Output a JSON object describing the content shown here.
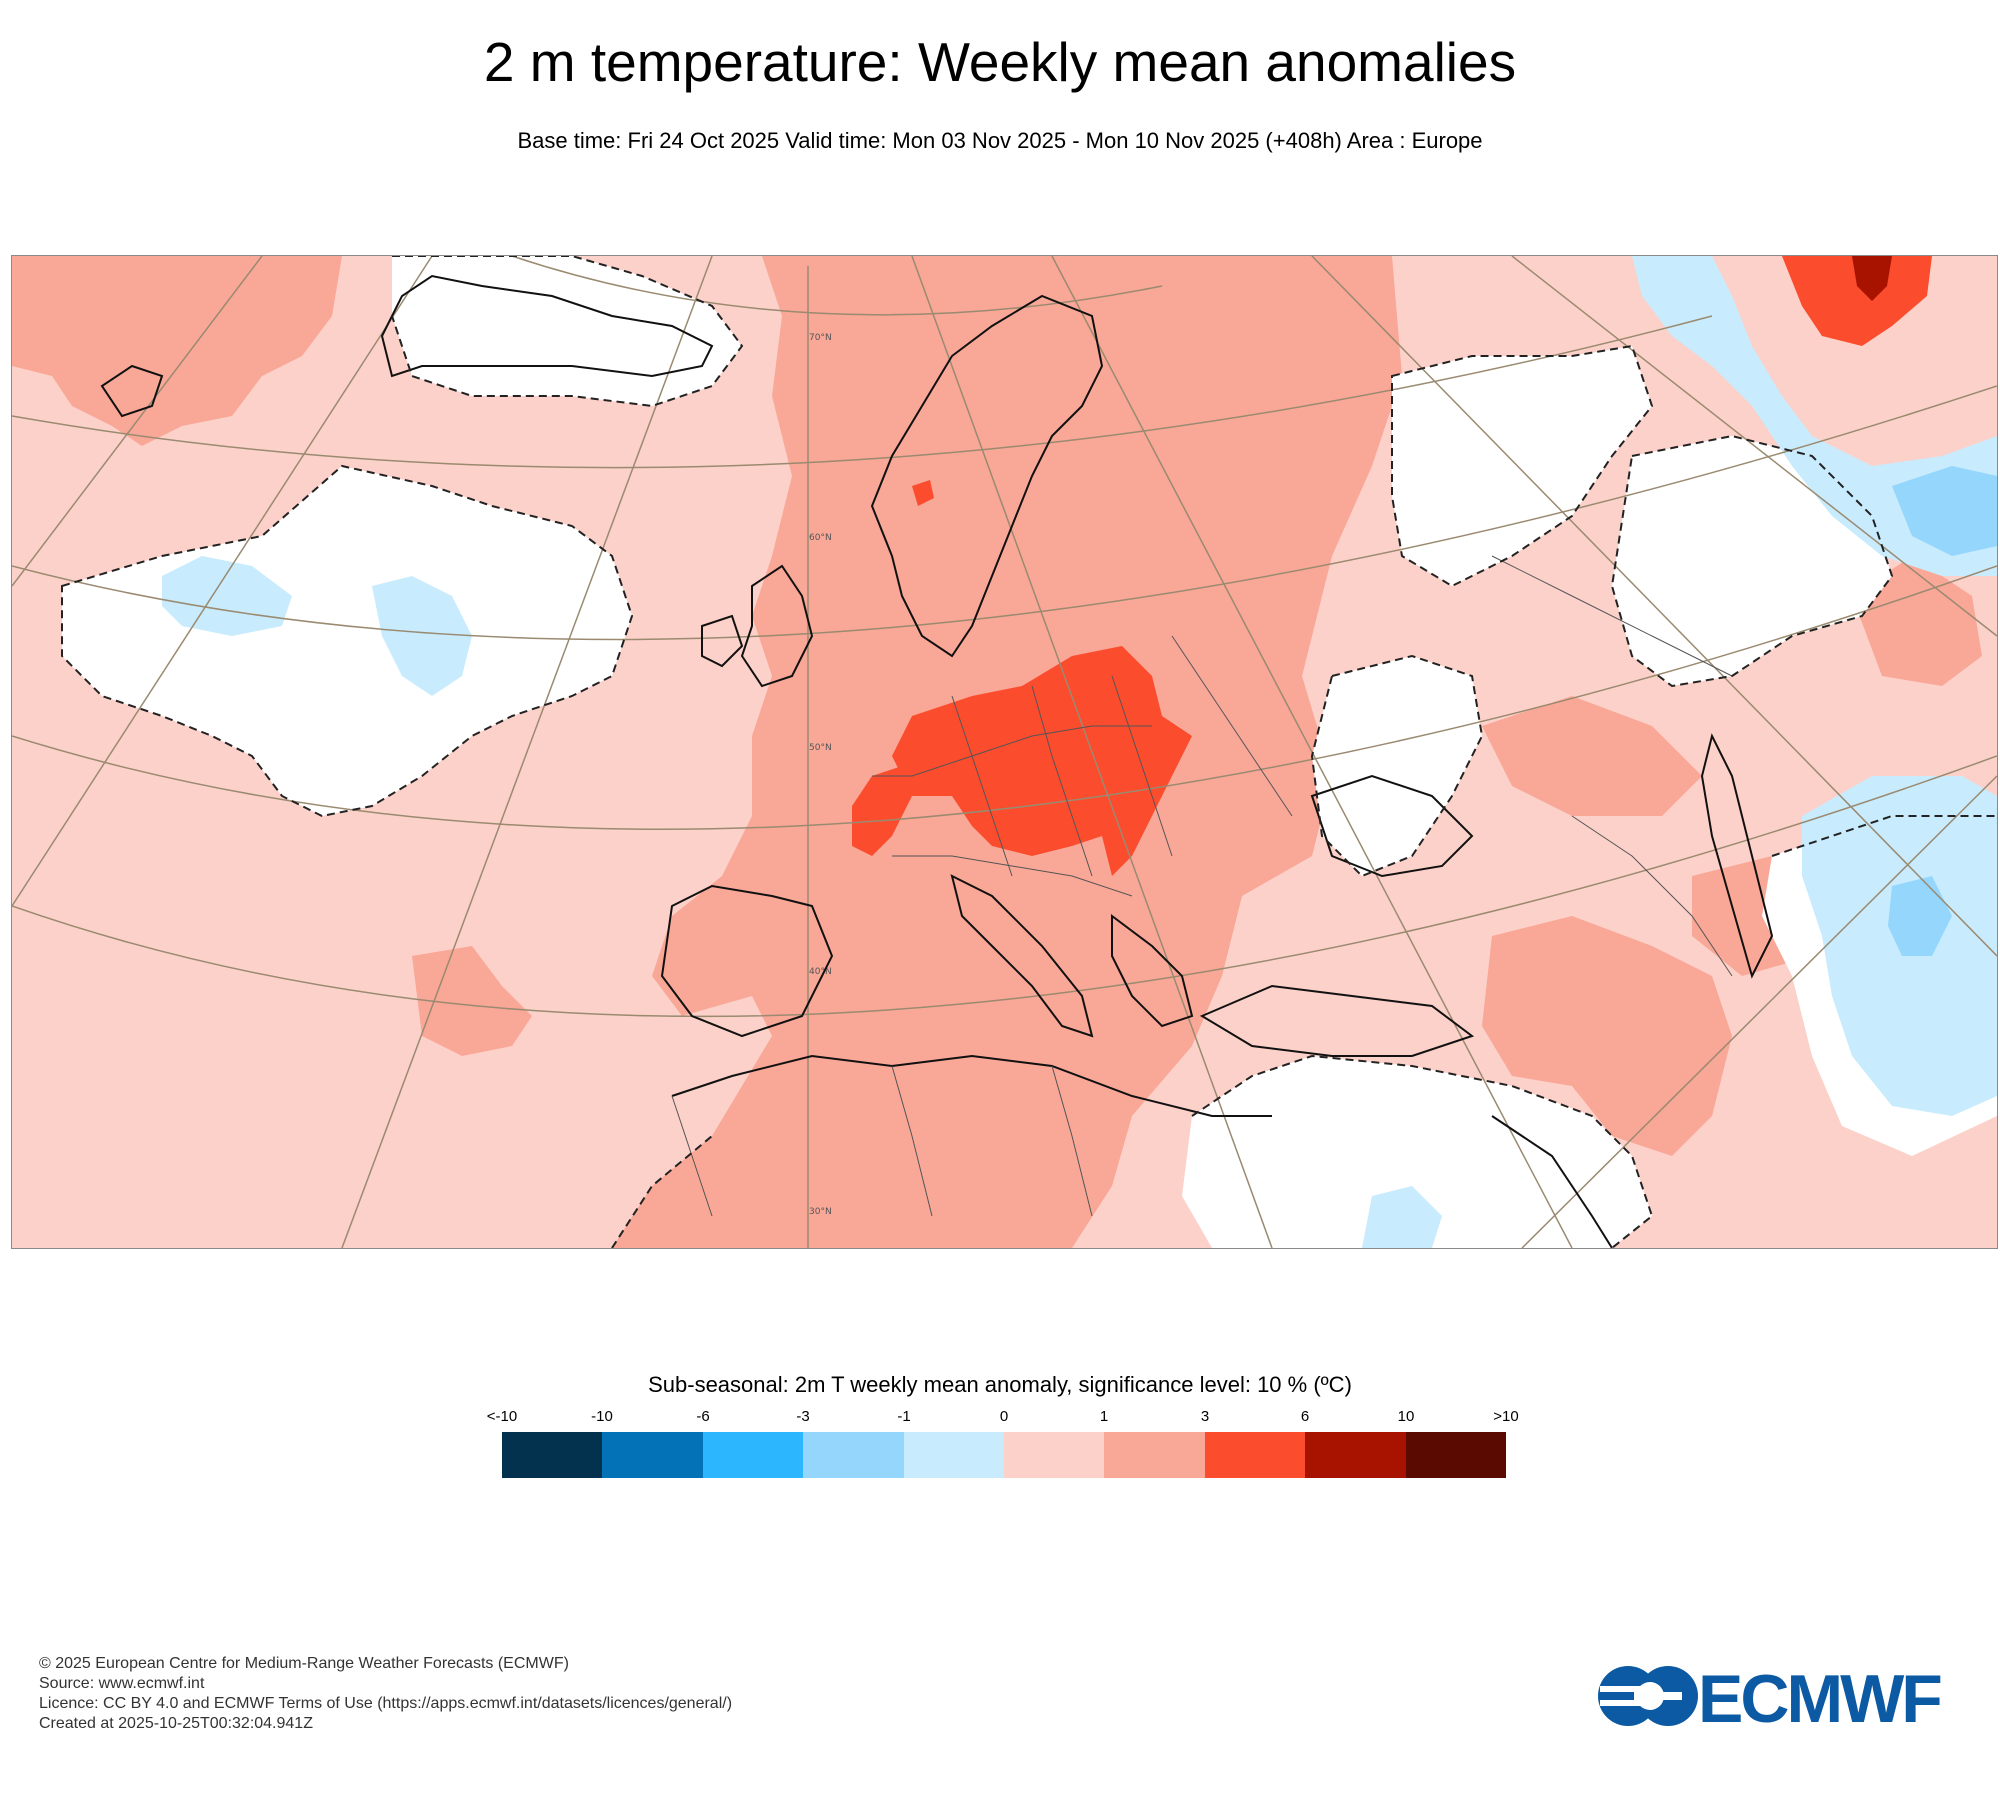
{
  "header": {
    "title": "2 m temperature: Weekly mean anomalies",
    "subtitle": "Base time: Fri 24 Oct 2025 Valid time: Mon 03 Nov 2025 - Mon 10 Nov 2025 (+408h) Area : Europe"
  },
  "map": {
    "latitude_labels": [
      "70°N",
      "60°N",
      "50°N",
      "40°N",
      "30°N"
    ],
    "colors": {
      "border": "#8a8a8a",
      "graticule": "#9a8a70",
      "coastline": "#111111",
      "country_border": "#555555"
    }
  },
  "legend": {
    "title": "Sub-seasonal: 2m T weekly mean anomaly, significance level: 10 % (ºC)",
    "ticks": [
      "<-10",
      "-10",
      "-6",
      "-3",
      "-1",
      "0",
      "1",
      "3",
      "6",
      "10",
      ">10"
    ],
    "colors": [
      "#03324f",
      "#0472b6",
      "#2cb6fd",
      "#95d6fd",
      "#c8ebfd",
      "#fcd1c9",
      "#f9a797",
      "#fc4c2e",
      "#a81300",
      "#5a0a00"
    ]
  },
  "footer": {
    "lines": [
      "© 2025 European Centre for Medium-Range Weather Forecasts (ECMWF)",
      "Source: www.ecmwf.int",
      "Licence: CC BY 4.0 and ECMWF Terms of Use (https://apps.ecmwf.int/datasets/licences/general/)",
      "Created at 2025-10-25T00:32:04.941Z"
    ],
    "logo_text": "ECMWF",
    "logo_color": "#0c5aa3"
  }
}
